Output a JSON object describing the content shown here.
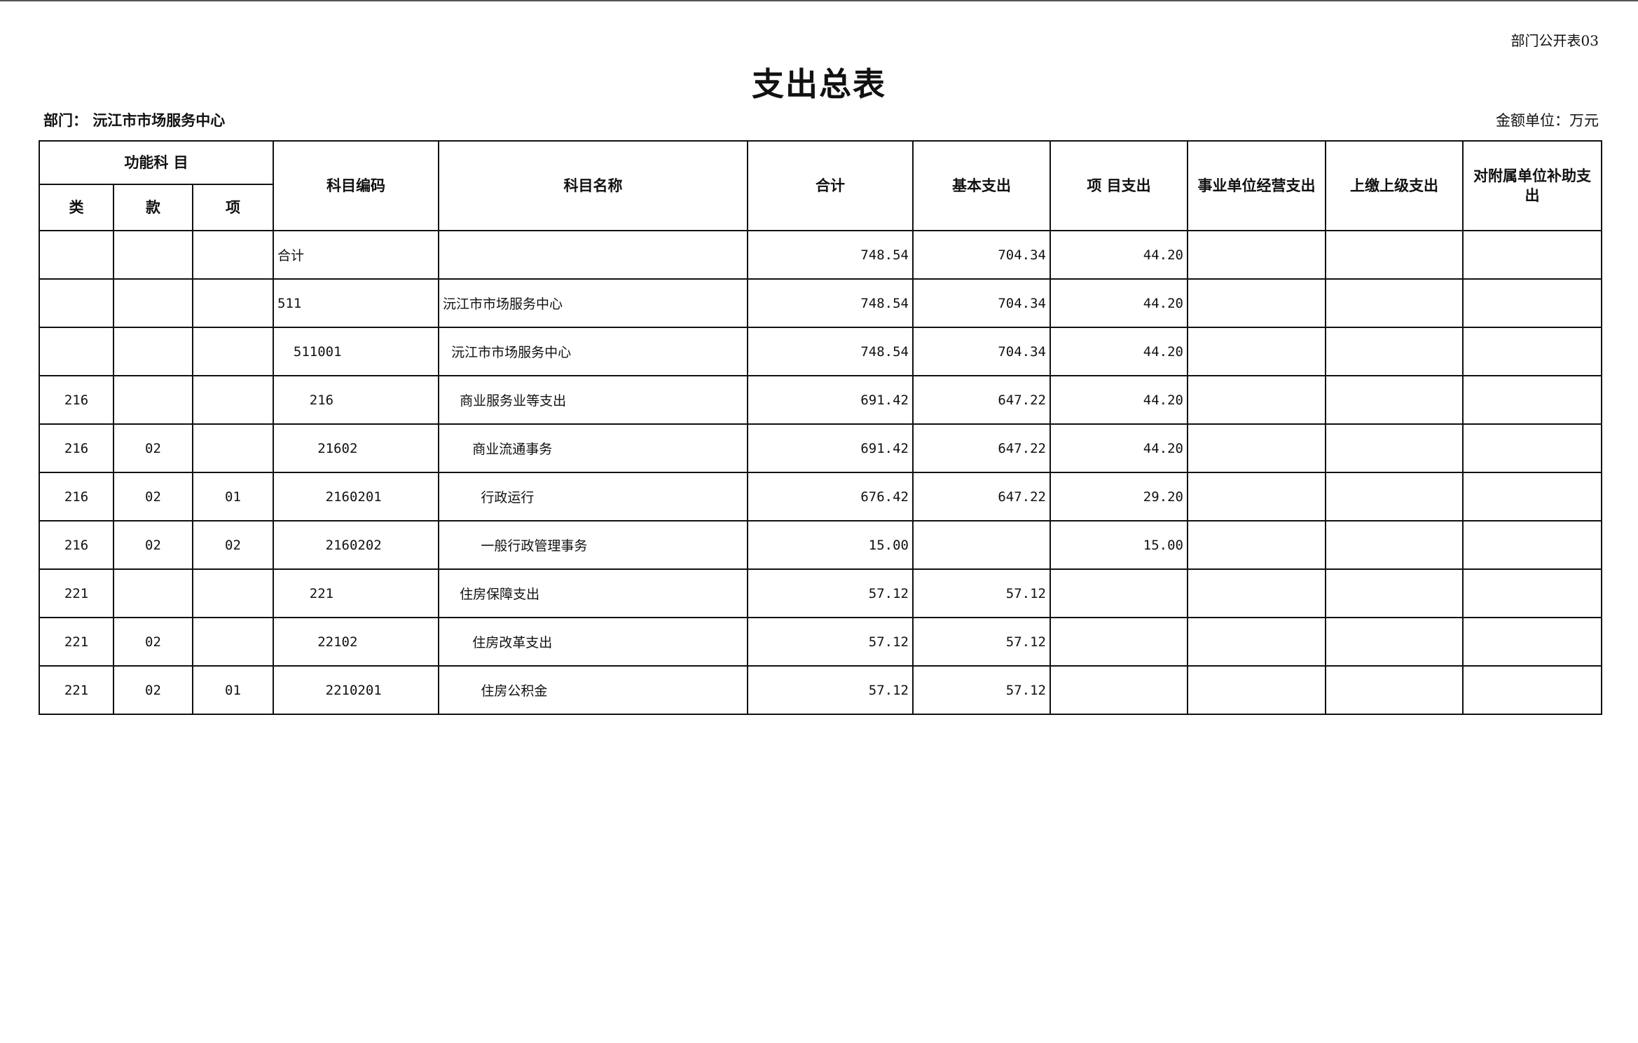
{
  "sheet_no": "部门公开表03",
  "title": "支出总表",
  "department": "部门： 沅江市市场服务中心",
  "unit": "金额单位：万元",
  "headers": {
    "group": "功能科 目",
    "lei": "类",
    "kuan": "款",
    "xiang": "项",
    "code": "科目编码",
    "name": "科目名称",
    "total": "合计",
    "basic": "基本支出",
    "project": "项 目支出",
    "business": "事业单位经营支出",
    "upper": "上缴上级支出",
    "subsidy": "对附属单位补助支出"
  },
  "rows": [
    {
      "lei": "",
      "kuan": "",
      "xiang": "",
      "code": "合计",
      "name": "",
      "total": "748.54",
      "basic": "704.34",
      "project": "44.20"
    },
    {
      "lei": "",
      "kuan": "",
      "xiang": "",
      "code": "511",
      "name": "沅江市市场服务中心",
      "total": "748.54",
      "basic": "704.34",
      "project": "44.20"
    },
    {
      "lei": "",
      "kuan": "",
      "xiang": "",
      "code": "  511001",
      "name": "  沅江市市场服务中心",
      "total": "748.54",
      "basic": "704.34",
      "project": "44.20"
    },
    {
      "lei": "216",
      "kuan": "",
      "xiang": "",
      "code": "    216",
      "name": "    商业服务业等支出",
      "total": "691.42",
      "basic": "647.22",
      "project": "44.20"
    },
    {
      "lei": "216",
      "kuan": "02",
      "xiang": "",
      "code": "     21602",
      "name": "       商业流通事务",
      "total": "691.42",
      "basic": "647.22",
      "project": "44.20"
    },
    {
      "lei": "216",
      "kuan": "02",
      "xiang": "01",
      "code": "      2160201",
      "name": "         行政运行",
      "total": "676.42",
      "basic": "647.22",
      "project": "29.20"
    },
    {
      "lei": "216",
      "kuan": "02",
      "xiang": "02",
      "code": "      2160202",
      "name": "         一般行政管理事务",
      "total": "15.00",
      "basic": "",
      "project": "15.00"
    },
    {
      "lei": "221",
      "kuan": "",
      "xiang": "",
      "code": "    221",
      "name": "    住房保障支出",
      "total": "57.12",
      "basic": "57.12",
      "project": ""
    },
    {
      "lei": "221",
      "kuan": "02",
      "xiang": "",
      "code": "     22102",
      "name": "       住房改革支出",
      "total": "57.12",
      "basic": "57.12",
      "project": ""
    },
    {
      "lei": "221",
      "kuan": "02",
      "xiang": "01",
      "code": "      2210201",
      "name": "         住房公积金",
      "total": "57.12",
      "basic": "57.12",
      "project": ""
    }
  ]
}
